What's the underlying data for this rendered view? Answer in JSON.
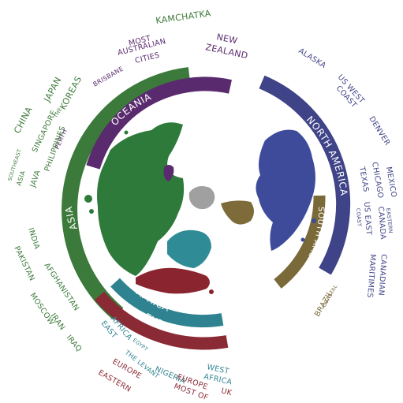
{
  "colors": {
    "asia": "#3b7a3a",
    "oceania": "#5a2a6e",
    "north_america": "#3f4387",
    "south_america": "#7a6a3a",
    "africa": "#2f8390",
    "europe": "#8a2a34",
    "antarctica": "#9a9a9a",
    "land_green": "#2e7a3a",
    "land_blue": "#3e4b9a",
    "land_teal": "#2f8b95",
    "land_red": "#8a2530",
    "land_olive": "#7d6b3a"
  },
  "bands": {
    "asia": "ASIA",
    "oceania": "OCEANIA",
    "north_america": "NORTH AMERICA",
    "south_america": "SOUTH AMERICA",
    "africa": "AFRICA",
    "europe": "EUROPE"
  },
  "places": {
    "kamchatka": "KAMCHATKA",
    "most": "MOST",
    "australian": "AUSTRALIAN",
    "cities": "CITIES",
    "new": "NEW",
    "zealand": "ZEALAND",
    "brisbane": "BRISBANE",
    "perth": "PERTH",
    "japan": "JAPAN",
    "the_small": "THE",
    "koreas": "KOREAS",
    "china": "CHINA",
    "singapore": "SINGAPORE",
    "philippines": "PHILIPPINES",
    "java": "JAVA",
    "southeast": "SOUTHEAST",
    "asia_small": "ASIA",
    "india": "INDIA",
    "pakistan": "PAKISTAN",
    "afghanistan": "AFGHANISTAN",
    "moscow": "MOSCOW",
    "iran": "IRAN",
    "iraq": "IRAQ",
    "east": "EAST",
    "africa_label": "AFRICA",
    "egypt": "EGYPT",
    "the_levant": "THE LEVANT",
    "nigeria": "NIGERIA",
    "west": "WEST",
    "west_africa": "AFRICA",
    "eastern": "EASTERN",
    "europe_label": "EUROPE",
    "most_of": "MOST OF",
    "europe2": "EUROPE",
    "uk": "UK",
    "alaska": "ALASKA",
    "us_west": "US WEST",
    "coast": "COAST",
    "denver": "DENVER",
    "mexico": "MEXICO",
    "chicago": "CHICAGO",
    "texas": "TEXAS",
    "eastern_na": "EASTERN",
    "canada": "CANADA",
    "us_east": "US EAST",
    "coast2": "COAST",
    "canadian": "CANADIAN",
    "maritimes": "MARITIMES",
    "coastal": "COASTAL",
    "brazil": "BRAZIL"
  }
}
